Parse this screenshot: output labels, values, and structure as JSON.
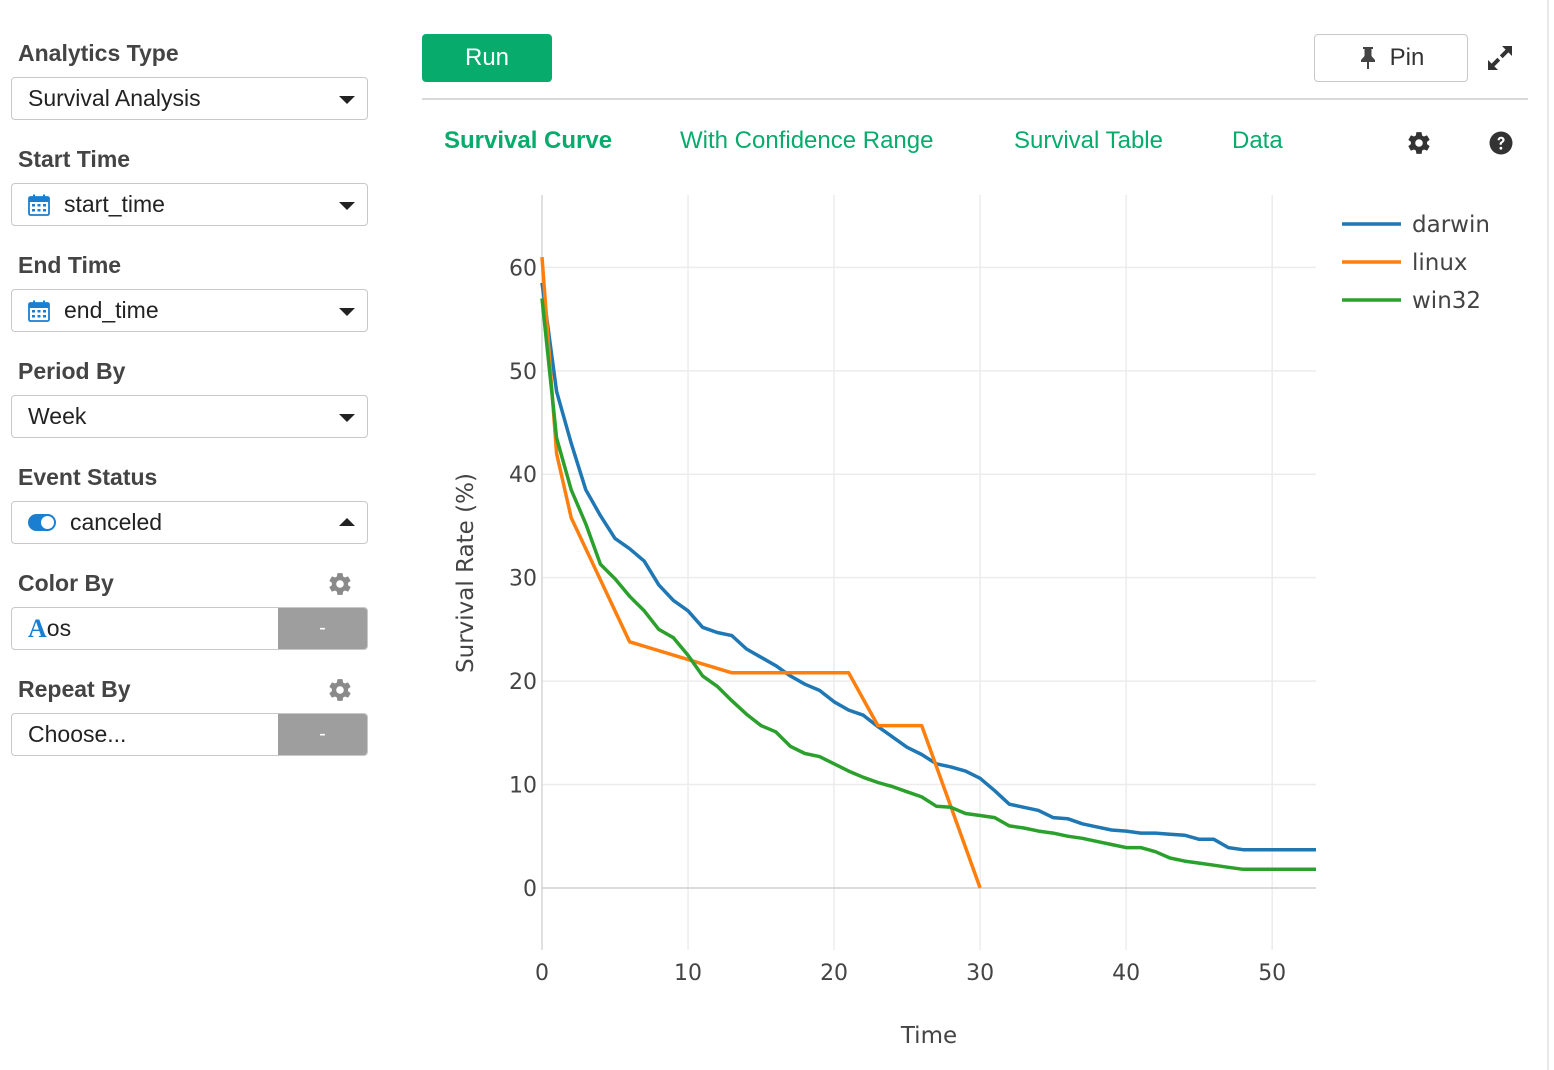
{
  "sidebar": {
    "analytics_type": {
      "label": "Analytics Type",
      "value": "Survival Analysis"
    },
    "start_time": {
      "label": "Start Time",
      "value": "start_time"
    },
    "end_time": {
      "label": "End Time",
      "value": "end_time"
    },
    "period_by": {
      "label": "Period By",
      "value": "Week"
    },
    "event_status": {
      "label": "Event Status",
      "value": "canceled"
    },
    "color_by": {
      "label": "Color By",
      "value": "os",
      "button": "-"
    },
    "repeat_by": {
      "label": "Repeat By",
      "value": "Choose...",
      "button": "-"
    }
  },
  "toolbar": {
    "run_label": "Run",
    "pin_label": "Pin"
  },
  "tabs": [
    {
      "label": "Survival Curve",
      "active": true
    },
    {
      "label": "With Confidence Range",
      "active": false
    },
    {
      "label": "Survival Table",
      "active": false
    },
    {
      "label": "Data",
      "active": false
    }
  ],
  "colors": {
    "accent": "#07ab6c",
    "darwin": "#1f77b4",
    "linux": "#ff7f0e",
    "win32": "#2ca02c"
  },
  "chart_data": {
    "type": "line",
    "xlabel": "Time",
    "ylabel": "Survival Rate (%)",
    "xlim": [
      0,
      53
    ],
    "ylim": [
      -6,
      67
    ],
    "xticks": [
      0,
      10,
      20,
      30,
      40,
      50
    ],
    "yticks": [
      0,
      10,
      20,
      30,
      40,
      50,
      60
    ],
    "grid": true,
    "legend_position": "top-right",
    "series": [
      {
        "name": "darwin",
        "color": "#1f77b4",
        "x": [
          0,
          1,
          2,
          3,
          4,
          5,
          6,
          7,
          8,
          9,
          10,
          11,
          12,
          13,
          14,
          15,
          16,
          17,
          18,
          19,
          20,
          21,
          22,
          23,
          24,
          25,
          26,
          27,
          28,
          29,
          30,
          31,
          32,
          33,
          34,
          35,
          36,
          37,
          38,
          39,
          40,
          41,
          42,
          43,
          44,
          45,
          46,
          47,
          48,
          49,
          50,
          51,
          52,
          53
        ],
        "y": [
          58.5,
          48,
          43,
          38.5,
          36,
          33.8,
          32.8,
          31.6,
          29.3,
          27.8,
          26.8,
          25.2,
          24.7,
          24.4,
          23.1,
          22.3,
          21.5,
          20.5,
          19.7,
          19.1,
          18,
          17.2,
          16.7,
          15.6,
          14.6,
          13.6,
          12.9,
          12,
          11.7,
          11.3,
          10.6,
          9.4,
          8.1,
          7.8,
          7.5,
          6.8,
          6.7,
          6.2,
          5.9,
          5.6,
          5.5,
          5.3,
          5.3,
          5.2,
          5.1,
          4.7,
          4.7,
          3.9,
          3.7,
          3.7,
          3.7,
          3.7,
          3.7,
          3.7
        ]
      },
      {
        "name": "linux",
        "color": "#ff7f0e",
        "x": [
          0,
          1,
          2,
          6,
          13,
          21,
          23,
          26,
          30
        ],
        "y": [
          61,
          42,
          35.8,
          23.8,
          20.8,
          20.8,
          15.7,
          15.7,
          0
        ]
      },
      {
        "name": "win32",
        "color": "#2ca02c",
        "x": [
          0,
          1,
          2,
          3,
          4,
          5,
          6,
          7,
          8,
          9,
          10,
          11,
          12,
          13,
          14,
          15,
          16,
          17,
          18,
          19,
          20,
          21,
          22,
          23,
          24,
          25,
          26,
          27,
          28,
          29,
          30,
          31,
          32,
          33,
          34,
          35,
          36,
          37,
          38,
          39,
          40,
          41,
          42,
          43,
          44,
          45,
          46,
          47,
          48,
          49,
          50,
          51,
          52,
          53
        ],
        "y": [
          57,
          43.5,
          38.5,
          35.2,
          31.3,
          29.9,
          28.2,
          26.8,
          25,
          24.2,
          22.5,
          20.5,
          19.5,
          18.1,
          16.8,
          15.7,
          15.1,
          13.7,
          13,
          12.7,
          12,
          11.3,
          10.7,
          10.2,
          9.8,
          9.3,
          8.8,
          7.9,
          7.8,
          7.2,
          7,
          6.8,
          6,
          5.8,
          5.5,
          5.3,
          5,
          4.8,
          4.5,
          4.2,
          3.9,
          3.9,
          3.5,
          2.9,
          2.6,
          2.4,
          2.2,
          2,
          1.8,
          1.8,
          1.8,
          1.8,
          1.8,
          1.8
        ]
      }
    ]
  }
}
